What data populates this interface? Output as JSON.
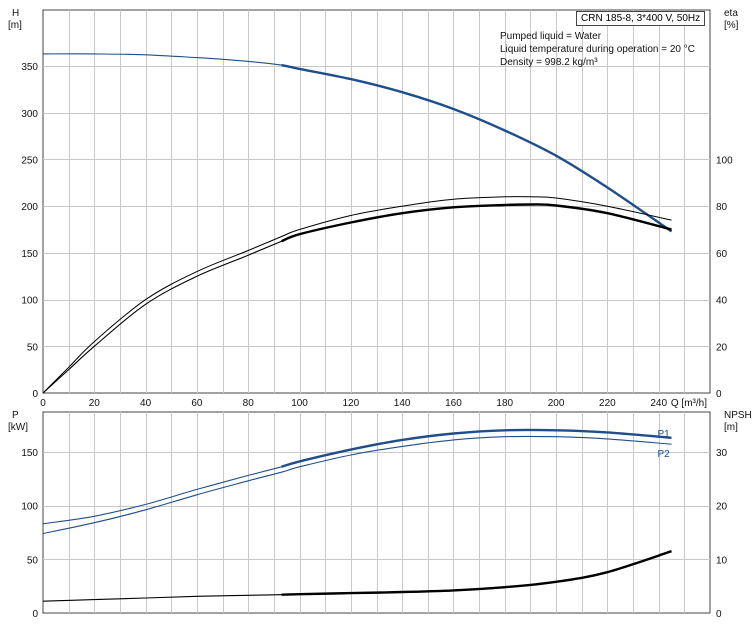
{
  "title": "CRN 185-8, 3*400 V, 50Hz",
  "info_lines": [
    "Pumped liquid = Water",
    "Liquid temperature during operation = 20 °C",
    "Density = 998.2 kg/m³"
  ],
  "chart_data": [
    {
      "type": "line",
      "name": "head-efficiency",
      "xlabel": "Q [m³/h]",
      "xlim": [
        0,
        260
      ],
      "x_ticks": [
        0,
        20,
        40,
        60,
        80,
        100,
        120,
        140,
        160,
        180,
        200,
        220,
        240
      ],
      "y_axis_left": {
        "label_top": "H",
        "label_unit": "[m]",
        "lim": [
          0,
          410
        ],
        "ticks": [
          0,
          50,
          100,
          150,
          200,
          250,
          300,
          350
        ]
      },
      "y_axis_right": {
        "label_top": "eta",
        "label_unit": "[%]",
        "lim": [
          0,
          164
        ],
        "ticks": [
          0,
          20,
          40,
          60,
          80,
          100
        ]
      },
      "grid": true,
      "series": [
        {
          "axis": "left",
          "color": "#1f4e8c",
          "bold_from": 93,
          "x": [
            0,
            20,
            40,
            60,
            80,
            93,
            100,
            120,
            140,
            160,
            180,
            200,
            220,
            245
          ],
          "values": [
            363,
            363,
            362,
            359,
            355,
            351,
            347,
            336,
            322,
            304,
            281,
            254,
            220,
            173
          ]
        },
        {
          "axis": "right",
          "color": "#000000",
          "bold_from": null,
          "outline": true,
          "x": [
            0,
            10,
            20,
            40,
            60,
            80,
            93,
            100,
            120,
            140,
            160,
            180,
            190,
            200,
            220,
            245
          ],
          "values": [
            0,
            11,
            22,
            40,
            52,
            61,
            67,
            70,
            76,
            80,
            83,
            84,
            84,
            83.5,
            80,
            74
          ]
        },
        {
          "axis": "right",
          "color": "#000000",
          "bold_from": 93,
          "x": [
            0,
            10,
            20,
            40,
            60,
            80,
            93,
            100,
            120,
            140,
            160,
            180,
            190,
            200,
            220,
            245
          ],
          "values": [
            0,
            10,
            20,
            38,
            50,
            59,
            65,
            68,
            73,
            77,
            79.5,
            80.5,
            80.7,
            80.3,
            77,
            70
          ]
        }
      ]
    },
    {
      "type": "line",
      "name": "power-npsh",
      "xlim": [
        0,
        260
      ],
      "x_ticks": [
        0,
        20,
        40,
        60,
        80,
        100,
        120,
        140,
        160,
        180,
        200,
        220,
        240
      ],
      "y_axis_left": {
        "label_top": "P",
        "label_unit": "[kW]",
        "lim": [
          0,
          187
        ],
        "ticks": [
          0,
          50,
          100,
          150
        ]
      },
      "y_axis_right": {
        "label_top": "NPSH",
        "label_unit": "[m]",
        "lim": [
          0,
          37.4
        ],
        "ticks": [
          0,
          10,
          20,
          30
        ]
      },
      "grid": true,
      "series": [
        {
          "name": "P1",
          "axis": "left",
          "color": "#1f4e8c",
          "bold_from": 93,
          "x": [
            0,
            20,
            40,
            60,
            80,
            93,
            100,
            120,
            140,
            160,
            180,
            200,
            220,
            245
          ],
          "values": [
            83,
            90,
            101,
            115,
            128,
            136,
            141,
            152,
            161,
            167,
            170,
            170,
            168,
            163
          ]
        },
        {
          "name": "P2",
          "axis": "left",
          "color": "#1f4e8c",
          "bold_from": null,
          "x": [
            0,
            20,
            40,
            60,
            80,
            93,
            100,
            120,
            140,
            160,
            180,
            200,
            220,
            245
          ],
          "values": [
            74,
            84,
            96,
            110,
            123,
            131,
            136,
            147,
            155,
            161,
            164,
            164,
            162,
            157
          ]
        },
        {
          "axis": "right",
          "color": "#000000",
          "bold_from": 93,
          "x": [
            0,
            20,
            40,
            60,
            80,
            93,
            100,
            120,
            140,
            160,
            180,
            200,
            220,
            245
          ],
          "values": [
            2.2,
            2.5,
            2.8,
            3.1,
            3.3,
            3.4,
            3.5,
            3.7,
            3.9,
            4.2,
            4.8,
            5.8,
            7.6,
            11.5
          ]
        }
      ]
    }
  ]
}
